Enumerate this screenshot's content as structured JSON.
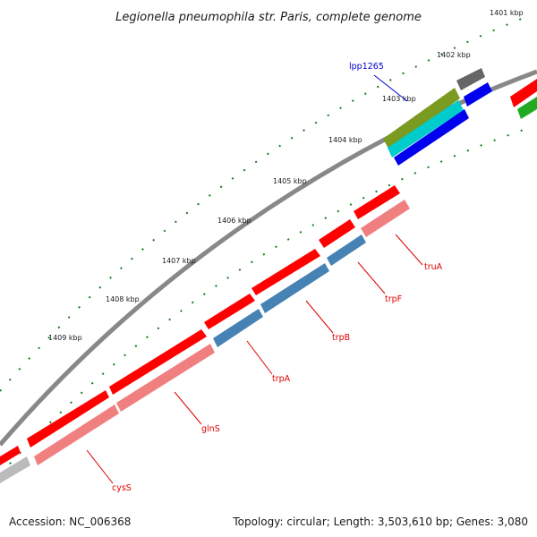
{
  "title": "Legionella pneumophila str. Paris, complete genome",
  "footer": {
    "accession": "Accession: NC_006368",
    "stats": "Topology: circular; Length: 3,503,610 bp; Genes: 3,080"
  },
  "ticks": [
    "1401 kbp",
    "1402 kbp",
    "1403 kbp",
    "1404 kbp",
    "1405 kbp",
    "1406 kbp",
    "1407 kbp",
    "1408 kbp",
    "1409 kbp"
  ],
  "genes": [
    {
      "name": "lpp1265",
      "label_color": "#0000cc"
    },
    {
      "name": "truA",
      "label_color": "#dd0000"
    },
    {
      "name": "trpF",
      "label_color": "#dd0000"
    },
    {
      "name": "trpB",
      "label_color": "#dd0000"
    },
    {
      "name": "trpA",
      "label_color": "#dd0000"
    },
    {
      "name": "glnS",
      "label_color": "#dd0000"
    },
    {
      "name": "cysS",
      "label_color": "#dd0000"
    }
  ],
  "colors": {
    "backbone": "#888888",
    "tick": "#1e7a1e",
    "cds_forward": "#ff0000",
    "cds_reverse_light": "#f08080",
    "cds_reverse_blue": "#4682b4",
    "gene_dark_blue": "#0000ee",
    "gene_cyan": "#00cccc",
    "gene_olive": "#7a9a20",
    "gene_gray": "#666666",
    "gene_green": "#22aa22",
    "gene_lightgray": "#bbbbbb"
  }
}
